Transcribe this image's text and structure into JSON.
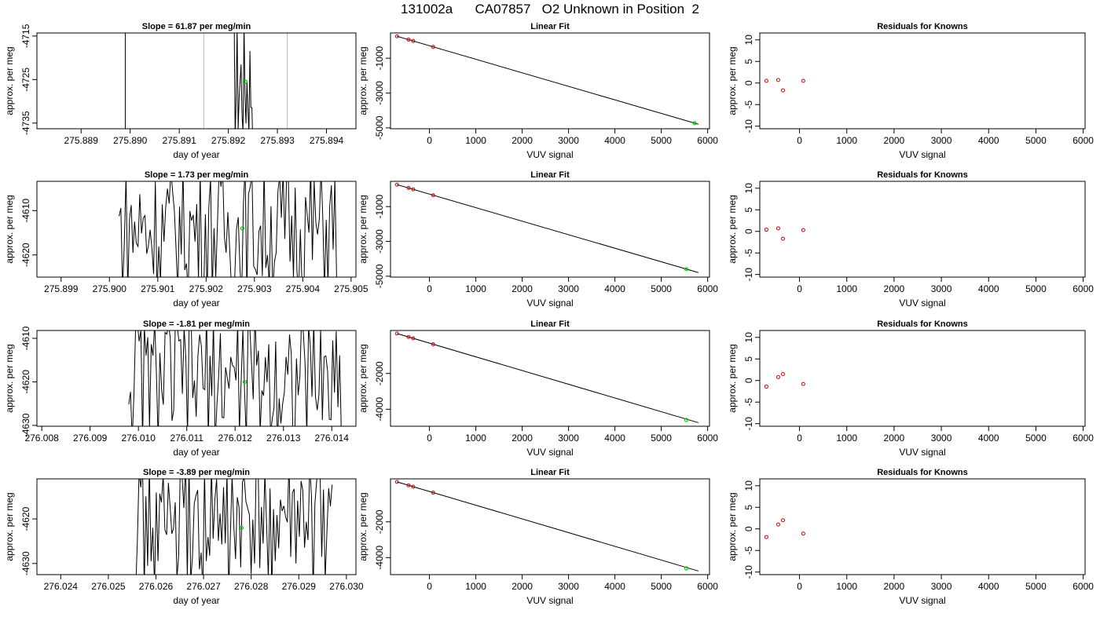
{
  "page_title": "131002a      CA07857   O2 Unknown in Position  2",
  "colors": {
    "trace": "#000000",
    "known_point": "#cc0000",
    "unknown_point": "#00cc00",
    "band": "#bbbbbb"
  },
  "chart_data": [
    {
      "type": "line",
      "row": 1,
      "col": 1,
      "title": "Slope =  61.87  per meg/min",
      "xlabel": "day of year",
      "ylabel": "approx. per meg",
      "xlim": [
        275.8881,
        275.8946
      ],
      "ylim": [
        -4736.3,
        -4714.3
      ],
      "xticks": [
        275.889,
        275.89,
        275.891,
        275.892,
        275.893,
        275.894
      ],
      "xtick_labels": [
        "275.889",
        "275.890",
        "275.891",
        "275.892",
        "275.893",
        "275.894"
      ],
      "yticks": [
        -4735,
        -4725,
        -4715
      ],
      "ytick_labels": [
        "-4735",
        "-4725",
        "-4715"
      ],
      "vlines_gray": [
        275.8915,
        275.8932
      ],
      "vlines_black": [
        275.8899
      ],
      "trace_x_range": [
        275.8921,
        275.8925
      ],
      "unknown_point": {
        "x": 275.89235,
        "y": -4725.5
      }
    },
    {
      "type": "scatter",
      "row": 1,
      "col": 2,
      "title": "Linear Fit",
      "xlabel": "VUV signal",
      "ylabel": "approx. per meg",
      "xlim": [
        -840,
        6040
      ],
      "ylim": [
        -5050,
        450
      ],
      "xticks": [
        0,
        1000,
        2000,
        3000,
        4000,
        5000,
        6000
      ],
      "xtick_labels": [
        "0",
        "1000",
        "2000",
        "3000",
        "4000",
        "5000",
        "6000"
      ],
      "yticks": [
        -5000,
        -3000,
        -1000
      ],
      "ytick_labels": [
        "-5000",
        "-3000",
        "-1000"
      ],
      "fit_line": [
        [
          -700,
          260
        ],
        [
          5800,
          -4790
        ]
      ],
      "knowns": [
        {
          "x": -700,
          "y": 260
        },
        {
          "x": -450,
          "y": 70
        },
        {
          "x": -350,
          "y": -10
        },
        {
          "x": 80,
          "y": -350
        }
      ],
      "unknowns": [
        {
          "x": 5720,
          "y": -4725
        }
      ]
    },
    {
      "type": "scatter",
      "row": 1,
      "col": 3,
      "title": "Residuals for Knowns",
      "xlabel": "VUV signal",
      "ylabel": "approx. per meg",
      "xlim": [
        -840,
        6040
      ],
      "ylim": [
        -10.6,
        11.6
      ],
      "xticks": [
        0,
        1000,
        2000,
        3000,
        4000,
        5000,
        6000
      ],
      "xtick_labels": [
        "0",
        "1000",
        "2000",
        "3000",
        "4000",
        "5000",
        "6000"
      ],
      "yticks": [
        -10,
        -5,
        0,
        5,
        10
      ],
      "ytick_labels": [
        "-10",
        "-5",
        "0",
        "5",
        "10"
      ],
      "points": [
        {
          "x": -700,
          "y": 0.5
        },
        {
          "x": -450,
          "y": 0.7
        },
        {
          "x": -350,
          "y": -1.7
        },
        {
          "x": 80,
          "y": 0.5
        }
      ]
    },
    {
      "type": "line",
      "row": 2,
      "col": 1,
      "title": "Slope =  1.73  per meg/min",
      "xlabel": "day of year",
      "ylabel": "approx. per meg",
      "xlim": [
        275.8985,
        275.9051
      ],
      "ylim": [
        -4625,
        -4603.4
      ],
      "xticks": [
        275.899,
        275.9,
        275.901,
        275.902,
        275.903,
        275.904,
        275.905
      ],
      "xtick_labels": [
        "275.899",
        "275.900",
        "275.901",
        "275.902",
        "275.903",
        "275.904",
        "275.905"
      ],
      "yticks": [
        -4620,
        -4610
      ],
      "ytick_labels": [
        "-4620",
        "-4610"
      ],
      "trace_x_range": [
        275.9002,
        275.9047
      ],
      "unknown_point": {
        "x": 275.90275,
        "y": -4614
      }
    },
    {
      "type": "scatter",
      "row": 2,
      "col": 2,
      "title": "Linear Fit",
      "xlabel": "VUV signal",
      "ylabel": "approx. per meg",
      "xlim": [
        -840,
        6040
      ],
      "ylim": [
        -5050,
        450
      ],
      "xticks": [
        0,
        1000,
        2000,
        3000,
        4000,
        5000,
        6000
      ],
      "xtick_labels": [
        "0",
        "1000",
        "2000",
        "3000",
        "4000",
        "5000",
        "6000"
      ],
      "yticks": [
        -5000,
        -3000,
        -1000
      ],
      "ytick_labels": [
        "-5000",
        "-3000",
        "-1000"
      ],
      "fit_line": [
        [
          -700,
          260
        ],
        [
          5800,
          -4790
        ]
      ],
      "knowns": [
        {
          "x": -700,
          "y": 260
        },
        {
          "x": -450,
          "y": 70
        },
        {
          "x": -350,
          "y": -10
        },
        {
          "x": 80,
          "y": -350
        }
      ],
      "unknowns": [
        {
          "x": 5540,
          "y": -4590
        }
      ]
    },
    {
      "type": "scatter",
      "row": 2,
      "col": 3,
      "title": "Residuals for Knowns",
      "xlabel": "VUV signal",
      "ylabel": "approx. per meg",
      "xlim": [
        -840,
        6040
      ],
      "ylim": [
        -10.6,
        11.6
      ],
      "xticks": [
        0,
        1000,
        2000,
        3000,
        4000,
        5000,
        6000
      ],
      "xtick_labels": [
        "0",
        "1000",
        "2000",
        "3000",
        "4000",
        "5000",
        "6000"
      ],
      "yticks": [
        -10,
        -5,
        0,
        5,
        10
      ],
      "ytick_labels": [
        "-10",
        "-5",
        "0",
        "5",
        "10"
      ],
      "points": [
        {
          "x": -700,
          "y": 0.4
        },
        {
          "x": -450,
          "y": 0.7
        },
        {
          "x": -350,
          "y": -1.7
        },
        {
          "x": 80,
          "y": 0.3
        }
      ]
    },
    {
      "type": "line",
      "row": 3,
      "col": 1,
      "title": "Slope =  -1.81  per meg/min",
      "xlabel": "day of year",
      "ylabel": "approx. per meg",
      "xlim": [
        276.0079,
        276.0145
      ],
      "ylim": [
        -4630.2,
        -4608.2
      ],
      "xticks": [
        276.008,
        276.009,
        276.01,
        276.011,
        276.012,
        276.013,
        276.014
      ],
      "xtick_labels": [
        "276.008",
        "276.009",
        "276.010",
        "276.011",
        "276.012",
        "276.013",
        "276.014"
      ],
      "yticks": [
        -4630,
        -4620,
        -4610
      ],
      "ytick_labels": [
        "-4630",
        "-4620",
        "-4610"
      ],
      "trace_x_range": [
        276.0098,
        276.0142
      ],
      "unknown_point": {
        "x": 276.0122,
        "y": -4620
      }
    },
    {
      "type": "scatter",
      "row": 3,
      "col": 2,
      "title": "Linear Fit",
      "xlabel": "VUV signal",
      "ylabel": "approx. per meg",
      "xlim": [
        -840,
        6040
      ],
      "ylim": [
        -4950,
        400
      ],
      "xticks": [
        0,
        1000,
        2000,
        3000,
        4000,
        5000,
        6000
      ],
      "xtick_labels": [
        "0",
        "1000",
        "2000",
        "3000",
        "4000",
        "5000",
        "6000"
      ],
      "yticks": [
        -4000,
        -2000
      ],
      "ytick_labels": [
        "-4000",
        "-2000"
      ],
      "fit_line": [
        [
          -700,
          230
        ],
        [
          5800,
          -4750
        ]
      ],
      "knowns": [
        {
          "x": -700,
          "y": 230
        },
        {
          "x": -450,
          "y": 40
        },
        {
          "x": -350,
          "y": -40
        },
        {
          "x": 80,
          "y": -370
        }
      ],
      "unknowns": [
        {
          "x": 5540,
          "y": -4600
        }
      ]
    },
    {
      "type": "scatter",
      "row": 3,
      "col": 3,
      "title": "Residuals for Knowns",
      "xlabel": "VUV signal",
      "ylabel": "approx. per meg",
      "xlim": [
        -840,
        6040
      ],
      "ylim": [
        -10.6,
        11.6
      ],
      "xticks": [
        0,
        1000,
        2000,
        3000,
        4000,
        5000,
        6000
      ],
      "xtick_labels": [
        "0",
        "1000",
        "2000",
        "3000",
        "4000",
        "5000",
        "6000"
      ],
      "yticks": [
        -10,
        -5,
        0,
        5,
        10
      ],
      "ytick_labels": [
        "-10",
        "-5",
        "0",
        "5",
        "10"
      ],
      "points": [
        {
          "x": -700,
          "y": -1.4
        },
        {
          "x": -450,
          "y": 0.8
        },
        {
          "x": -350,
          "y": 1.5
        },
        {
          "x": 80,
          "y": -0.8
        }
      ]
    },
    {
      "type": "line",
      "row": 4,
      "col": 1,
      "title": "Slope =  -3.89  per meg/min",
      "xlabel": "day of year",
      "ylabel": "approx. per meg",
      "xlim": [
        276.0235,
        276.0302
      ],
      "ylim": [
        -4632.5,
        -4611
      ],
      "xticks": [
        276.024,
        276.025,
        276.026,
        276.027,
        276.028,
        276.029,
        276.03
      ],
      "xtick_labels": [
        "276.024",
        "276.025",
        "276.026",
        "276.027",
        "276.028",
        "276.029",
        "276.030"
      ],
      "yticks": [
        -4630,
        -4620
      ],
      "ytick_labels": [
        "-4630",
        "-4620"
      ],
      "trace_x_range": [
        276.0255,
        276.0297
      ],
      "unknown_point": {
        "x": 276.0278,
        "y": -4622
      }
    },
    {
      "type": "scatter",
      "row": 4,
      "col": 2,
      "title": "Linear Fit",
      "xlabel": "VUV signal",
      "ylabel": "approx. per meg",
      "xlim": [
        -840,
        6040
      ],
      "ylim": [
        -4950,
        400
      ],
      "xticks": [
        0,
        1000,
        2000,
        3000,
        4000,
        5000,
        6000
      ],
      "xtick_labels": [
        "0",
        "1000",
        "2000",
        "3000",
        "4000",
        "5000",
        "6000"
      ],
      "yticks": [
        -4000,
        -2000
      ],
      "ytick_labels": [
        "-4000",
        "-2000"
      ],
      "fit_line": [
        [
          -700,
          230
        ],
        [
          5800,
          -4750
        ]
      ],
      "knowns": [
        {
          "x": -700,
          "y": 230
        },
        {
          "x": -450,
          "y": 40
        },
        {
          "x": -350,
          "y": -40
        },
        {
          "x": 80,
          "y": -370
        }
      ],
      "unknowns": [
        {
          "x": 5540,
          "y": -4600
        }
      ]
    },
    {
      "type": "scatter",
      "row": 4,
      "col": 3,
      "title": "Residuals for Knowns",
      "xlabel": "VUV signal",
      "ylabel": "approx. per meg",
      "xlim": [
        -840,
        6040
      ],
      "ylim": [
        -10.6,
        11.6
      ],
      "xticks": [
        0,
        1000,
        2000,
        3000,
        4000,
        5000,
        6000
      ],
      "xtick_labels": [
        "0",
        "1000",
        "2000",
        "3000",
        "4000",
        "5000",
        "6000"
      ],
      "yticks": [
        -10,
        -5,
        0,
        5,
        10
      ],
      "ytick_labels": [
        "-10",
        "-5",
        "0",
        "5",
        "10"
      ],
      "points": [
        {
          "x": -700,
          "y": -1.9
        },
        {
          "x": -450,
          "y": 1.0
        },
        {
          "x": -350,
          "y": 2.0
        },
        {
          "x": 80,
          "y": -1.1
        }
      ]
    }
  ]
}
